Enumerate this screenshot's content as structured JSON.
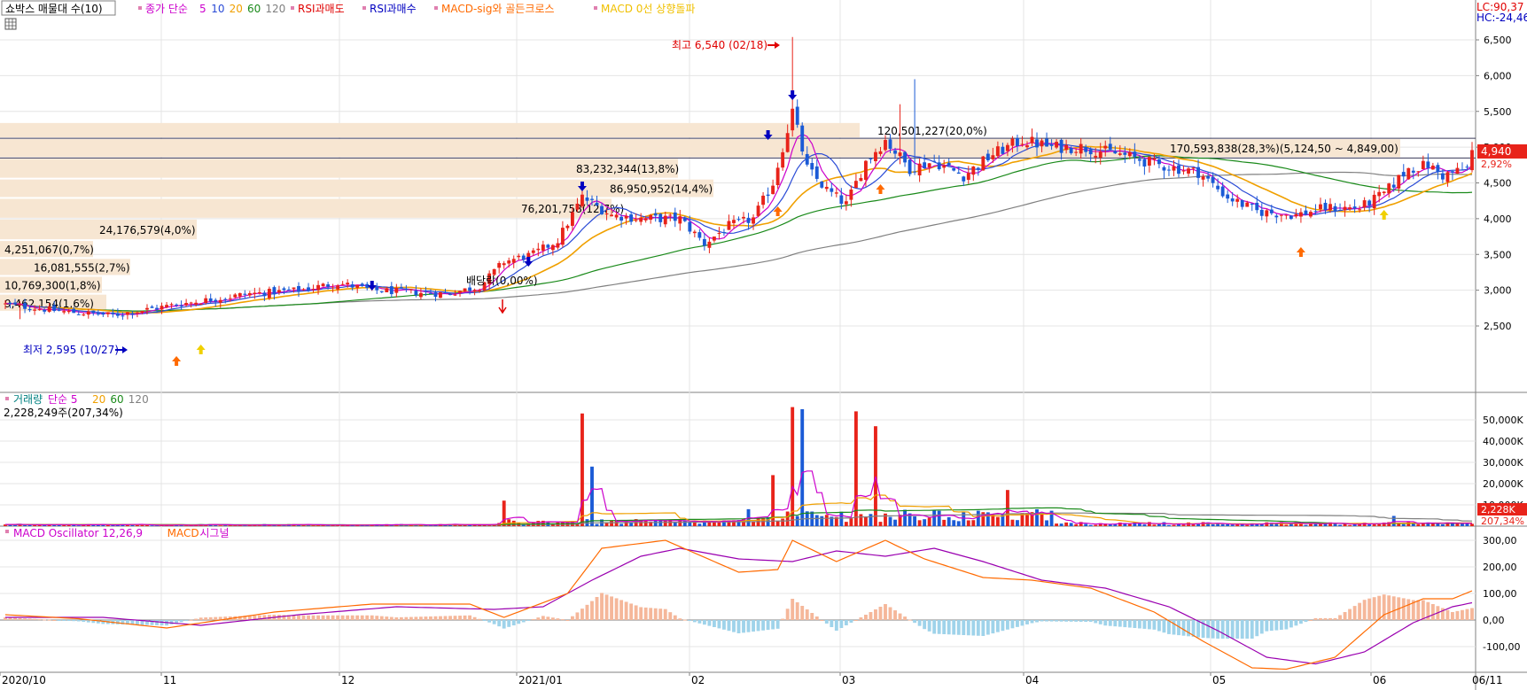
{
  "legend_main": [
    {
      "text": "쇼박스 매물대 수(10)",
      "color": "#000000"
    },
    {
      "text": "종가 단순",
      "color": "#cc00cc"
    },
    {
      "text": "5",
      "color": "#cc00cc"
    },
    {
      "text": "10",
      "color": "#2a4bd6"
    },
    {
      "text": "20",
      "color": "#f0a000"
    },
    {
      "text": "60",
      "color": "#1a8a1a"
    },
    {
      "text": "120",
      "color": "#808080"
    },
    {
      "text": "RSI과매도",
      "color": "#e00000"
    },
    {
      "text": "RSI과매수",
      "color": "#0000c0"
    },
    {
      "text": "MACD-sig와 골든크로스",
      "color": "#ff6a00"
    },
    {
      "text": "MACD 0선 상향돌파",
      "color": "#f0c000"
    }
  ],
  "legend_volume": [
    {
      "text": "거래량",
      "color": "#008080"
    },
    {
      "text": "단순 5",
      "color": "#cc00cc"
    },
    {
      "text": "20",
      "color": "#f0a000"
    },
    {
      "text": "60",
      "color": "#1a8a1a"
    },
    {
      "text": "120",
      "color": "#808080"
    }
  ],
  "legend_macd": [
    {
      "text": "MACD Oscillator 12,26,9",
      "color": "#cc00cc"
    },
    {
      "text": "MACD",
      "color": "#ff6a00"
    },
    {
      "text": "시그널",
      "color": "#cc00cc"
    }
  ],
  "volume_info": "2,228,249주(207,34%)",
  "top_right": {
    "lc": "LC:90,37",
    "hc": "HC:-24,46"
  },
  "price_badge": {
    "value": "4,940",
    "change": "2,92%"
  },
  "volume_badge": {
    "value": "2,228K",
    "pct": "207,34%"
  },
  "annotations": {
    "high": "최고 6,540 (02/18)",
    "low": "최저 2,595 (10/27)",
    "dividend": "배당락(0,00%)"
  },
  "colors": {
    "up": "#e8231a",
    "down": "#1a5ad6",
    "ma5": "#cc00cc",
    "ma10": "#2a4bd6",
    "ma20": "#f0a000",
    "ma60": "#1a8a1a",
    "ma120": "#808080",
    "profile": "#f7e6d2",
    "macd_pos": "#f5b79a",
    "macd_neg": "#9fd3ea",
    "macd_line": "#ff6a00",
    "signal_line": "#9a00b0"
  },
  "chart_data": [
    {
      "type": "candlestick",
      "title": "쇼박스",
      "x_ticks": [
        "2020/10",
        "11",
        "12",
        "2021/01",
        "02",
        "03",
        "04",
        "05",
        "06",
        "06/11"
      ],
      "y_ticks": [
        "6,500",
        "6,000",
        "5,500",
        "5,000",
        "4,500",
        "4,000",
        "3,500",
        "3,000",
        "2,500"
      ],
      "ylim": [
        2100,
        6900
      ],
      "close_trend": [
        [
          0,
          2800
        ],
        [
          12,
          2700
        ],
        [
          22,
          2650
        ],
        [
          35,
          2800
        ],
        [
          50,
          2950
        ],
        [
          60,
          3000
        ],
        [
          68,
          3100
        ],
        [
          75,
          3000
        ],
        [
          90,
          2950
        ],
        [
          97,
          3050
        ],
        [
          102,
          3400
        ],
        [
          108,
          3500
        ],
        [
          113,
          3700
        ],
        [
          118,
          4300
        ],
        [
          124,
          4050
        ],
        [
          130,
          4000
        ],
        [
          138,
          4000
        ],
        [
          143,
          3650
        ],
        [
          148,
          3900
        ],
        [
          153,
          4000
        ],
        [
          157,
          4500
        ],
        [
          161,
          5500
        ],
        [
          164,
          4700
        ],
        [
          168,
          4400
        ],
        [
          172,
          4200
        ],
        [
          176,
          4800
        ],
        [
          180,
          5100
        ],
        [
          185,
          4700
        ],
        [
          190,
          4800
        ],
        [
          196,
          4600
        ],
        [
          202,
          4900
        ],
        [
          208,
          5100
        ],
        [
          214,
          5000
        ],
        [
          220,
          5000
        ],
        [
          228,
          4900
        ],
        [
          236,
          4750
        ],
        [
          244,
          4650
        ],
        [
          250,
          4300
        ],
        [
          256,
          4100
        ],
        [
          264,
          4050
        ],
        [
          270,
          4150
        ],
        [
          277,
          4150
        ],
        [
          282,
          4350
        ],
        [
          287,
          4700
        ],
        [
          291,
          4750
        ],
        [
          294,
          4600
        ],
        [
          299,
          4700
        ],
        [
          300,
          4940
        ]
      ],
      "volume_pane": {
        "y_ticks": [
          "50,000K",
          "40,000K",
          "30,000K",
          "20,000K",
          "10,000K"
        ],
        "ylim": [
          0,
          60000
        ],
        "spikes": [
          [
            102,
            12000
          ],
          [
            118,
            53000
          ],
          [
            120,
            28000
          ],
          [
            157,
            24000
          ],
          [
            161,
            56000
          ],
          [
            163,
            55000
          ],
          [
            174,
            54000
          ],
          [
            178,
            47000
          ],
          [
            205,
            17000
          ],
          [
            284,
            4800
          ]
        ]
      },
      "macd_pane": {
        "y_ticks": [
          "300,00",
          "200,00",
          "100,00",
          "0,00",
          "-100,00"
        ],
        "ylim": [
          -200,
          340
        ],
        "macd_points": [
          [
            0,
            20
          ],
          [
            15,
            5
          ],
          [
            33,
            -30
          ],
          [
            55,
            30
          ],
          [
            75,
            60
          ],
          [
            95,
            60
          ],
          [
            102,
            10
          ],
          [
            115,
            100
          ],
          [
            122,
            270
          ],
          [
            135,
            300
          ],
          [
            150,
            180
          ],
          [
            158,
            190
          ],
          [
            161,
            300
          ],
          [
            170,
            220
          ],
          [
            180,
            300
          ],
          [
            188,
            230
          ],
          [
            200,
            160
          ],
          [
            210,
            150
          ],
          [
            222,
            120
          ],
          [
            235,
            30
          ],
          [
            245,
            -80
          ],
          [
            255,
            -180
          ],
          [
            262,
            -185
          ],
          [
            272,
            -140
          ],
          [
            282,
            20
          ],
          [
            290,
            80
          ],
          [
            296,
            80
          ],
          [
            300,
            110
          ]
        ],
        "signal_points": [
          [
            0,
            10
          ],
          [
            20,
            10
          ],
          [
            40,
            -20
          ],
          [
            60,
            20
          ],
          [
            80,
            50
          ],
          [
            100,
            40
          ],
          [
            110,
            50
          ],
          [
            120,
            150
          ],
          [
            130,
            240
          ],
          [
            138,
            270
          ],
          [
            150,
            230
          ],
          [
            161,
            220
          ],
          [
            170,
            260
          ],
          [
            180,
            240
          ],
          [
            190,
            270
          ],
          [
            200,
            220
          ],
          [
            212,
            150
          ],
          [
            225,
            120
          ],
          [
            238,
            50
          ],
          [
            248,
            -40
          ],
          [
            258,
            -140
          ],
          [
            268,
            -165
          ],
          [
            278,
            -120
          ],
          [
            288,
            -10
          ],
          [
            296,
            50
          ],
          [
            300,
            65
          ]
        ]
      }
    }
  ]
}
